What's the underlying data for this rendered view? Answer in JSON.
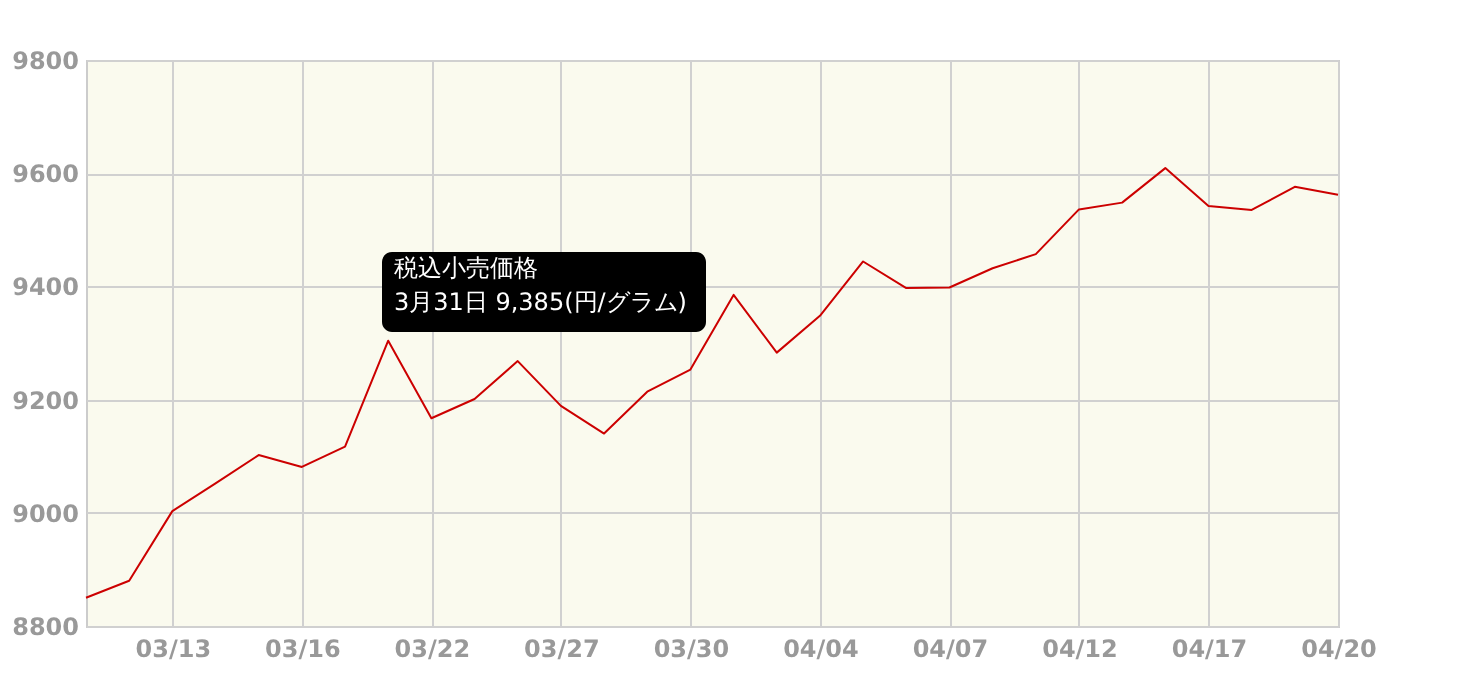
{
  "chart_data": {
    "type": "line",
    "categories": [
      null,
      null,
      "03/13",
      null,
      null,
      "03/16",
      null,
      null,
      "03/22",
      null,
      null,
      "03/27",
      null,
      null,
      "03/30",
      null,
      null,
      "04/04",
      null,
      null,
      "04/07",
      null,
      null,
      "04/12",
      null,
      null,
      "04/17",
      null,
      null,
      "04/20"
    ],
    "series": [
      {
        "color": "#cc0000",
        "values": [
          8850,
          8880,
          9003,
          9052,
          9102,
          9081,
          9117,
          9304,
          9167,
          9201,
          9268,
          9189,
          9140,
          9214,
          9253,
          9385,
          9283,
          9348,
          9444,
          9397,
          9398,
          9432,
          9457,
          9536,
          9548,
          9609,
          9542,
          9535,
          9576,
          9562
        ]
      }
    ],
    "ylim": [
      8800,
      9800
    ],
    "yticks": [
      8800,
      9000,
      9200,
      9400,
      9600,
      9800
    ],
    "grid": true,
    "marker": "none",
    "line_style": "solid",
    "annotations": [
      "税込小売価格\n3月31日 9,385(円/グラム)"
    ]
  }
}
